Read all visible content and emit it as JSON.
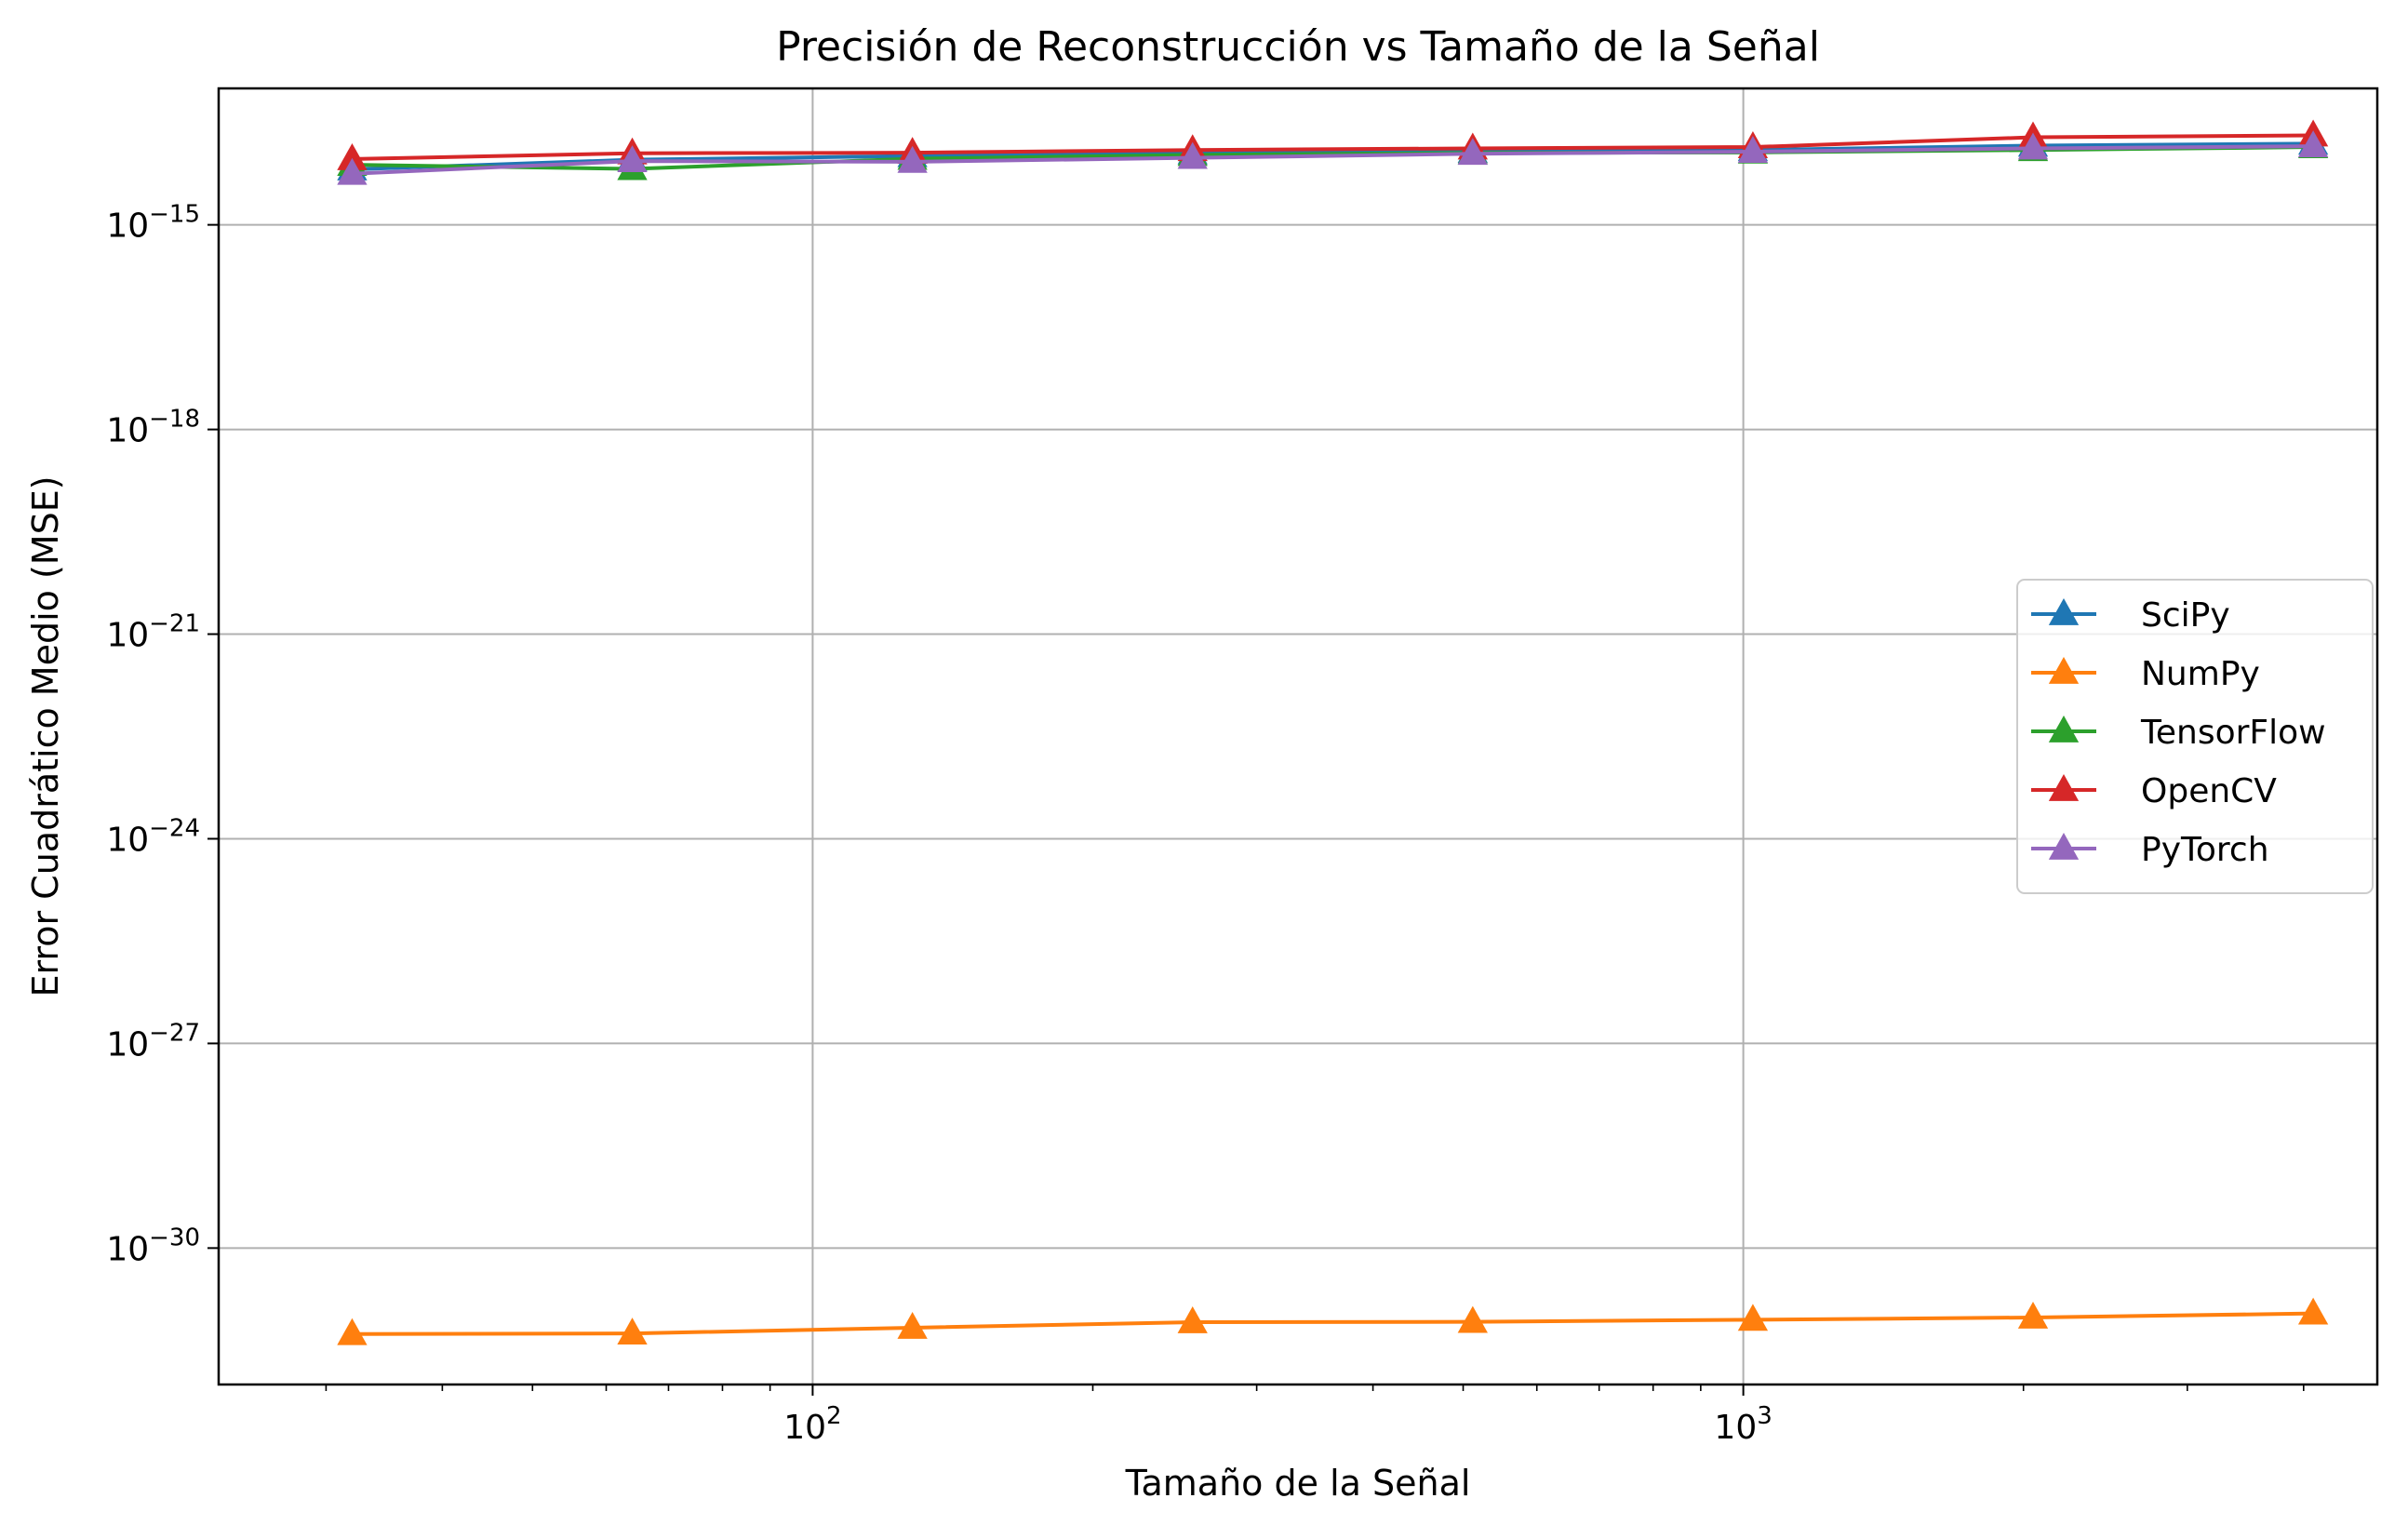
{
  "chart_data": {
    "type": "line",
    "title": "Precisión de Reconstrucción vs Tamaño de la Señal",
    "xlabel": "Tamaño de la Señal",
    "ylabel": "Error Cuadrático Medio (MSE)",
    "xscale": "log",
    "yscale": "log",
    "xlim": [
      23,
      4800
    ],
    "ylim": [
      1e-32,
      1e-13
    ],
    "xticks": [
      {
        "value": 100,
        "base": "10",
        "exp": "2"
      },
      {
        "value": 1000,
        "base": "10",
        "exp": "3"
      }
    ],
    "yticks": [
      {
        "value": 1e-30,
        "base": "10",
        "exp": "−30"
      },
      {
        "value": 1e-27,
        "base": "10",
        "exp": "−27"
      },
      {
        "value": 1e-24,
        "base": "10",
        "exp": "−24"
      },
      {
        "value": 1e-21,
        "base": "10",
        "exp": "−21"
      },
      {
        "value": 1e-18,
        "base": "10",
        "exp": "−18"
      },
      {
        "value": 1e-15,
        "base": "10",
        "exp": "−15"
      }
    ],
    "grid": true,
    "legend_position": "center-right",
    "marker": "triangle",
    "x": [
      32,
      64,
      128,
      256,
      512,
      1024,
      2048,
      4096
    ],
    "series": [
      {
        "name": "SciPy",
        "color": "#1f77b4",
        "values": [
          6.5e-15,
          9e-15,
          1.02e-14,
          1.12e-14,
          1.18e-14,
          1.25e-14,
          1.45e-14,
          1.55e-14
        ]
      },
      {
        "name": "NumPy",
        "color": "#ff7f0e",
        "values": [
          5.5e-32,
          5.6e-32,
          6.8e-32,
          8.2e-32,
          8.3e-32,
          8.9e-32,
          9.6e-32,
          1.1e-31
        ]
      },
      {
        "name": "TensorFlow",
        "color": "#2ca02c",
        "values": [
          7.6e-15,
          6.6e-15,
          9.3e-15,
          1.06e-14,
          1.13e-14,
          1.15e-14,
          1.25e-14,
          1.38e-14
        ]
      },
      {
        "name": "OpenCV",
        "color": "#d62728",
        "values": [
          9.2e-15,
          1.12e-14,
          1.14e-14,
          1.25e-14,
          1.32e-14,
          1.38e-14,
          1.92e-14,
          2.05e-14
        ]
      },
      {
        "name": "PyTorch",
        "color": "#9467bd",
        "values": [
          5.6e-15,
          8.6e-15,
          8.4e-15,
          9.6e-15,
          1.1e-14,
          1.18e-14,
          1.32e-14,
          1.42e-14
        ]
      }
    ]
  }
}
